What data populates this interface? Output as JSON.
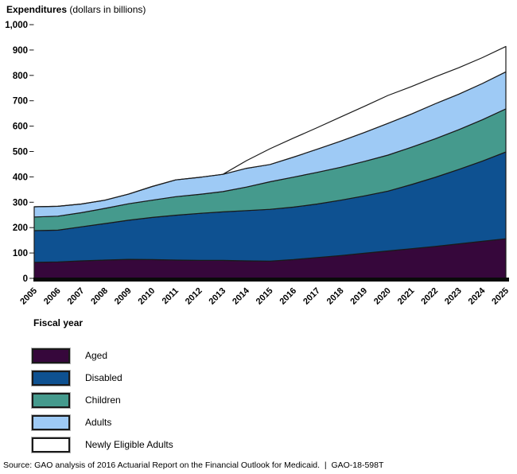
{
  "header": {
    "title": "Expenditures",
    "subtitle": " (dollars in billions)"
  },
  "axes": {
    "x_title": "Fiscal year"
  },
  "chart_data": {
    "type": "area",
    "stacked": true,
    "title": "Expenditures (dollars in billions)",
    "xlabel": "Fiscal year",
    "ylabel": "Expenditures (dollars in billions)",
    "ylim": [
      0,
      1000
    ],
    "grid": false,
    "legend_position": "bottom-left",
    "x": [
      2005,
      2006,
      2007,
      2008,
      2009,
      2010,
      2011,
      2012,
      2013,
      2014,
      2015,
      2016,
      2017,
      2018,
      2019,
      2020,
      2021,
      2022,
      2023,
      2024,
      2025
    ],
    "yticks": [
      0,
      100,
      200,
      300,
      400,
      500,
      600,
      700,
      800,
      900,
      1000
    ],
    "ytick_labels": [
      "0",
      "100",
      "200",
      "300",
      "400",
      "500",
      "600",
      "700",
      "800",
      "900",
      "1,000"
    ],
    "series": [
      {
        "name": "Aged",
        "color": "#36073b",
        "values": [
          63,
          65,
          69,
          72,
          75,
          74,
          72,
          71,
          71,
          69,
          68,
          74,
          82,
          90,
          99,
          108,
          117,
          126,
          136,
          146,
          156
        ]
      },
      {
        "name": "Disabled",
        "color": "#0e5191",
        "values": [
          125,
          125,
          134,
          144,
          154,
          166,
          177,
          185,
          191,
          198,
          204,
          207,
          211,
          218,
          226,
          236,
          253,
          272,
          293,
          316,
          342
        ]
      },
      {
        "name": "Children",
        "color": "#459a8d",
        "values": [
          54,
          55,
          56,
          60,
          65,
          68,
          73,
          75,
          80,
          93,
          109,
          118,
          125,
          130,
          136,
          142,
          147,
          152,
          157,
          163,
          170
        ]
      },
      {
        "name": "Adults",
        "color": "#9ecaf5",
        "values": [
          40,
          39,
          34,
          32,
          38,
          54,
          66,
          67,
          68,
          74,
          68,
          79,
          91,
          103,
          114,
          125,
          131,
          138,
          140,
          143,
          146
        ]
      },
      {
        "name": "Newly Eligible Adults",
        "color": "#ffffff",
        "values": [
          0,
          0,
          0,
          0,
          0,
          0,
          0,
          0,
          0,
          30,
          62,
          75,
          85,
          95,
          103,
          110,
          108,
          106,
          104,
          102,
          100
        ]
      }
    ],
    "line_color": "#1a1a1a"
  },
  "legend": {
    "items": [
      {
        "label": "Aged",
        "color": "#36073b"
      },
      {
        "label": "Disabled",
        "color": "#0e5191"
      },
      {
        "label": "Children",
        "color": "#459a8d"
      },
      {
        "label": "Adults",
        "color": "#9ecaf5"
      },
      {
        "label": "Newly Eligible Adults",
        "color": "#ffffff"
      }
    ]
  },
  "footer": {
    "source": "Source: GAO analysis of 2016 Actuarial Report on the Financial Outlook for Medicaid.  |  GAO-18-598T"
  }
}
